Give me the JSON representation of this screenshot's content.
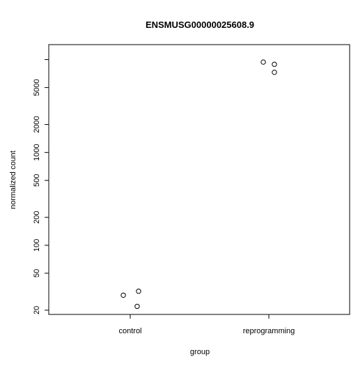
{
  "chart_data": {
    "type": "scatter",
    "title": "ENSMUSG00000025608.9",
    "xlabel": "group",
    "ylabel": "normalized count",
    "y_scale": "log",
    "ylim": [
      18,
      14500
    ],
    "categories": [
      "control",
      "reprogramming"
    ],
    "y_ticks": [
      {
        "value": 10000,
        "label": ""
      },
      {
        "value": 5000,
        "label": "5000"
      },
      {
        "value": 2000,
        "label": "2000"
      },
      {
        "value": 1000,
        "label": "1000"
      },
      {
        "value": 500,
        "label": "500"
      },
      {
        "value": 200,
        "label": "200"
      },
      {
        "value": 100,
        "label": "100"
      },
      {
        "value": 50,
        "label": "50"
      },
      {
        "value": 20,
        "label": "20"
      }
    ],
    "points": [
      {
        "category": "control",
        "jitter": -0.05,
        "y": 29
      },
      {
        "category": "control",
        "jitter": 0.06,
        "y": 32
      },
      {
        "category": "control",
        "jitter": 0.05,
        "y": 22
      },
      {
        "category": "reprogramming",
        "jitter": -0.04,
        "y": 9400
      },
      {
        "category": "reprogramming",
        "jitter": 0.04,
        "y": 8900
      },
      {
        "category": "reprogramming",
        "jitter": 0.04,
        "y": 7300
      }
    ],
    "grid": false,
    "legend": "none"
  }
}
